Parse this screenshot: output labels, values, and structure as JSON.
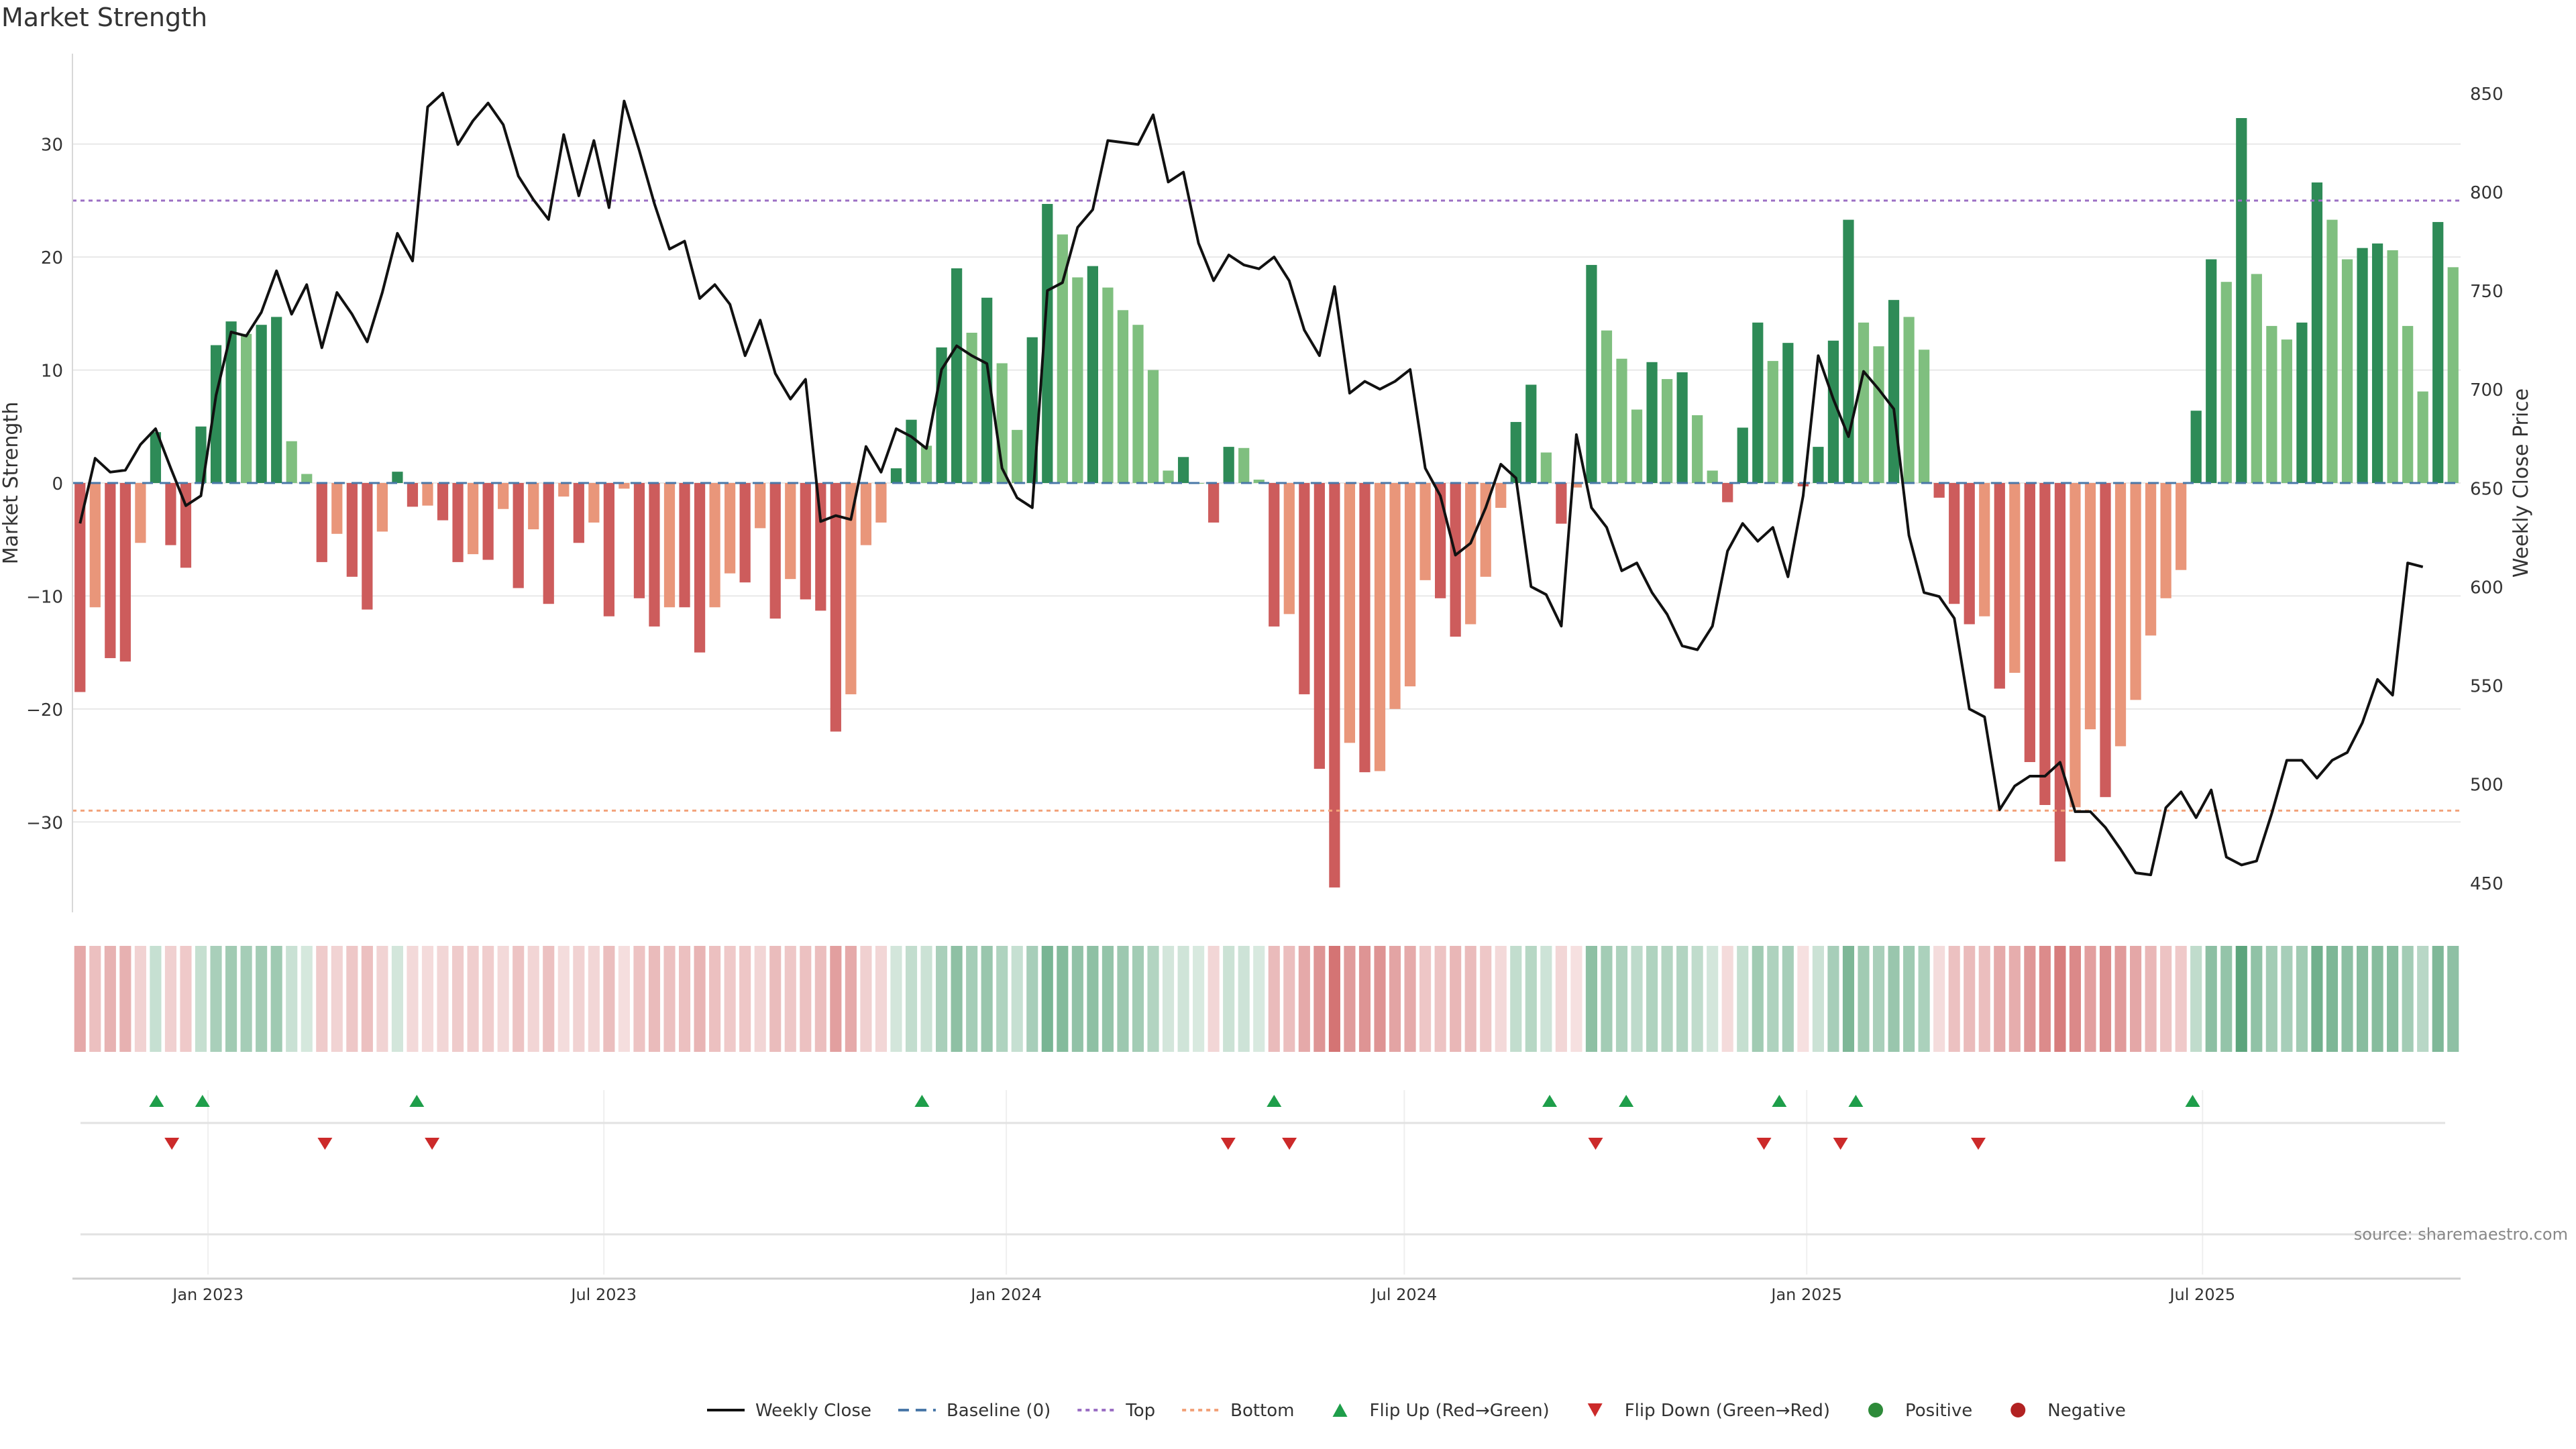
{
  "chart_data": {
    "type": "bar",
    "title": "Market Strength",
    "ylabel": "Market Strength",
    "y2label": "Weekly Close Price",
    "ylim": [
      -38,
      38
    ],
    "y2lim": [
      435,
      870
    ],
    "yticks": [
      -30,
      -20,
      -10,
      0,
      10,
      20,
      30
    ],
    "y2ticks": [
      450,
      500,
      550,
      600,
      650,
      700,
      750,
      800,
      850
    ],
    "top_line": 25,
    "bottom_line": -29,
    "grid": true,
    "legend_position": "bottom-center",
    "source": "source: sharemaestro.com",
    "x_start": "2022-10-31",
    "x_end": "2025-10-20",
    "xticks": [
      {
        "date": "2023-01-01",
        "label": "Jan 2023"
      },
      {
        "date": "2023-07-01",
        "label": "Jul 2023"
      },
      {
        "date": "2024-01-01",
        "label": "Jan 2024"
      },
      {
        "date": "2024-07-01",
        "label": "Jul 2024"
      },
      {
        "date": "2025-01-01",
        "label": "Jan 2025"
      },
      {
        "date": "2025-07-01",
        "label": "Jul 2025"
      }
    ],
    "series": [
      {
        "name": "Market Strength",
        "values": [
          -18.5,
          -11,
          -15.5,
          -15.8,
          -5.3,
          4.5,
          -5.5,
          -7.5,
          5,
          12.2,
          14.3,
          13.2,
          14,
          14.7,
          3.7,
          0.8,
          -7,
          -4.5,
          -8.3,
          -11.2,
          -4.3,
          1,
          -2.1,
          -2,
          -3.3,
          -7,
          -6.3,
          -6.8,
          -2.3,
          -9.3,
          -4.1,
          -10.7,
          -1.2,
          -5.3,
          -3.5,
          -11.8,
          -0.5,
          -10.2,
          -12.7,
          -11,
          -11,
          -15,
          -11,
          -8,
          -8.8,
          -4,
          -12,
          -8.5,
          -10.3,
          -11.3,
          -22,
          -18.7,
          -5.5,
          -3.5,
          1.3,
          5.6,
          3.3,
          12,
          19,
          13.3,
          16.4,
          10.6,
          4.7,
          12.9,
          24.7,
          22,
          18.2,
          19.2,
          17.3,
          15.3,
          14,
          10,
          1.1,
          2.3,
          0,
          -3.5,
          3.2,
          3.1,
          0.3,
          -12.7,
          -11.6,
          -18.7,
          -25.3,
          -35.8,
          -23,
          -25.6,
          -25.5,
          -20,
          -18,
          -8.6,
          -10.2,
          -13.6,
          -12.5,
          -8.3,
          -2.2,
          5.4,
          8.7,
          2.7,
          -3.6,
          -0.4,
          19.3,
          13.5,
          11,
          6.5,
          10.7,
          9.2,
          9.8,
          6,
          1.1,
          -1.7,
          4.9,
          14.2,
          10.8,
          12.4,
          -0.3,
          3.2,
          12.6,
          23.3,
          14.2,
          12.1,
          16.2,
          14.7,
          11.8,
          -1.3,
          -10.7,
          -12.5,
          -11.8,
          -18.2,
          -16.8,
          -24.7,
          -28.5,
          -33.5,
          -28.7,
          -21.8,
          -27.8,
          -23.3,
          -19.2,
          -13.5,
          -10.2,
          -7.7,
          6.4,
          19.8,
          17.8,
          32.3,
          18.5,
          13.9,
          12.7,
          14.2,
          26.6,
          23.3,
          19.8,
          20.8,
          21.2,
          20.6,
          13.9,
          8.1,
          23.1,
          19.1
        ]
      },
      {
        "name": "Weekly Close",
        "values": [
          632,
          665,
          658,
          659,
          672,
          680,
          660,
          641,
          646,
          697,
          729,
          727,
          739,
          760,
          738,
          753,
          721,
          749,
          738,
          724,
          749,
          779,
          765,
          843,
          850,
          824,
          836,
          845,
          834,
          808,
          796,
          786,
          829,
          798,
          826,
          792,
          846,
          821,
          794,
          771,
          775,
          746,
          753,
          743,
          717,
          735,
          708,
          695,
          705,
          633,
          636,
          634,
          671,
          658,
          680,
          676,
          670,
          710,
          722,
          717,
          713,
          660,
          645,
          640,
          750,
          754,
          782,
          791,
          826,
          825,
          824,
          839,
          805,
          810,
          774,
          755,
          768,
          763,
          761,
          767,
          755,
          730,
          717,
          752,
          698,
          704,
          700,
          704,
          710,
          660,
          646,
          616,
          622,
          640,
          662,
          655,
          600,
          596,
          580,
          677,
          640,
          630,
          608,
          612,
          597,
          586,
          570,
          568,
          580,
          618,
          632,
          623,
          630,
          605,
          646,
          717,
          695,
          676,
          709,
          700,
          690,
          626,
          597,
          595,
          584,
          538,
          534,
          487,
          499,
          504,
          504,
          511,
          486,
          486,
          478,
          467,
          455,
          454,
          488,
          496,
          483,
          497,
          463,
          459,
          461,
          485,
          512,
          512,
          503,
          512,
          516,
          531,
          553,
          545,
          612,
          610
        ]
      }
    ],
    "flip_up_dates": [
      "2022-12-05",
      "2022-12-26",
      "2023-04-03",
      "2023-11-20",
      "2024-04-29",
      "2024-09-02",
      "2024-10-07",
      "2024-12-16",
      "2025-01-20",
      "2025-06-23"
    ],
    "flip_down_dates": [
      "2022-12-12",
      "2023-02-20",
      "2023-04-10",
      "2024-04-08",
      "2024-05-06",
      "2024-09-23",
      "2024-12-09",
      "2025-01-13",
      "2025-03-17"
    ],
    "legend": [
      {
        "label": "Weekly Close",
        "icon": "solid-line",
        "color": "#111111"
      },
      {
        "label": "Baseline (0)",
        "icon": "dashed-line",
        "color": "#4a78a8"
      },
      {
        "label": "Top",
        "icon": "dotted-line",
        "color": "#9b6fc4"
      },
      {
        "label": "Bottom",
        "icon": "dotted-line",
        "color": "#f2a27a"
      },
      {
        "label": "Flip Up (Red→Green)",
        "icon": "triangle-up",
        "color": "#1e9e4a"
      },
      {
        "label": "Flip Down (Green→Red)",
        "icon": "triangle-down",
        "color": "#cc2a2a"
      },
      {
        "label": "Positive",
        "icon": "circle",
        "color": "#2e8b3a"
      },
      {
        "label": "Negative",
        "icon": "circle",
        "color": "#b22222"
      }
    ],
    "colors": {
      "pos_strong": "#2e8b57",
      "pos_weak": "#7fbf7f",
      "neg_strong": "#cd5c5c",
      "neg_weak": "#e9967a",
      "grid": "#e8e8e8",
      "top": "#9b6fc4",
      "bottom": "#f2a27a",
      "baseline": "#4a78a8"
    }
  }
}
